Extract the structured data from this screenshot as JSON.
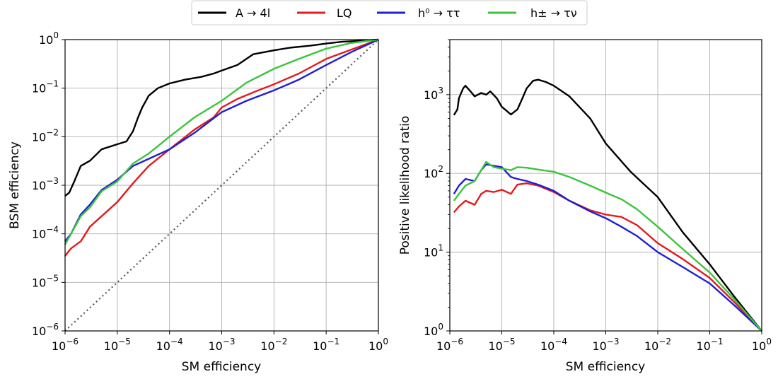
{
  "legend": [
    {
      "label": "A → 4l",
      "color": "#000000"
    },
    {
      "label": "LQ",
      "color": "#e41a1c"
    },
    {
      "label": "h⁰ → ττ",
      "color": "#1f1fd6"
    },
    {
      "label": "h± → τν",
      "color": "#3cc43c"
    }
  ],
  "chart_data": [
    {
      "type": "line",
      "xlabel": "SM efficiency",
      "ylabel": "BSM efficiency",
      "xscale": "log",
      "yscale": "log",
      "xlim": [
        1e-06,
        1
      ],
      "ylim": [
        1e-06,
        1
      ],
      "grid": true,
      "xticks": [
        {
          "base": "10",
          "exp": "−6"
        },
        {
          "base": "10",
          "exp": "−5"
        },
        {
          "base": "10",
          "exp": "−4"
        },
        {
          "base": "10",
          "exp": "−3"
        },
        {
          "base": "10",
          "exp": "−2"
        },
        {
          "base": "10",
          "exp": "−1"
        },
        {
          "base": "10",
          "exp": "0"
        }
      ],
      "yticks": [
        {
          "base": "10",
          "exp": "−6"
        },
        {
          "base": "10",
          "exp": "−5"
        },
        {
          "base": "10",
          "exp": "−4"
        },
        {
          "base": "10",
          "exp": "−3"
        },
        {
          "base": "10",
          "exp": "−2"
        },
        {
          "base": "10",
          "exp": "−1"
        },
        {
          "base": "10",
          "exp": "0"
        }
      ],
      "series": [
        {
          "name": "A → 4l",
          "color": "#000000",
          "x": [
            1e-06,
            1.2e-06,
            1.5e-06,
            2e-06,
            3e-06,
            5e-06,
            1e-05,
            1.5e-05,
            2e-05,
            2.5e-05,
            3e-05,
            4e-05,
            6e-05,
            0.0001,
            0.0002,
            0.0004,
            0.0007,
            0.001,
            0.002,
            0.004,
            0.007,
            0.01,
            0.02,
            0.05,
            0.1,
            0.2,
            0.5,
            1
          ],
          "y": [
            0.0006,
            0.0007,
            0.0012,
            0.0025,
            0.0032,
            0.0055,
            0.007,
            0.008,
            0.013,
            0.025,
            0.04,
            0.07,
            0.1,
            0.125,
            0.15,
            0.17,
            0.2,
            0.23,
            0.3,
            0.5,
            0.56,
            0.6,
            0.68,
            0.75,
            0.83,
            0.9,
            0.95,
            1
          ]
        },
        {
          "name": "LQ",
          "color": "#e41a1c",
          "x": [
            1e-06,
            1.3e-06,
            2e-06,
            3e-06,
            5e-06,
            1e-05,
            2e-05,
            4e-05,
            0.0001,
            0.0003,
            0.0007,
            0.001,
            0.002,
            0.005,
            0.01,
            0.03,
            0.1,
            0.3,
            1
          ],
          "y": [
            3.5e-05,
            5e-05,
            7e-05,
            0.00014,
            0.00023,
            0.00045,
            0.0011,
            0.0025,
            0.0055,
            0.014,
            0.025,
            0.04,
            0.06,
            0.09,
            0.12,
            0.2,
            0.4,
            0.62,
            1
          ]
        },
        {
          "name": "h⁰ → ττ",
          "color": "#1f1fd6",
          "x": [
            1e-06,
            1.3e-06,
            2e-06,
            3e-06,
            5e-06,
            1e-05,
            2e-05,
            4e-05,
            0.0001,
            0.0003,
            0.001,
            0.003,
            0.01,
            0.03,
            0.1,
            0.3,
            1
          ],
          "y": [
            7e-05,
            0.0001,
            0.00025,
            0.0004,
            0.0008,
            0.0013,
            0.0025,
            0.0035,
            0.0055,
            0.012,
            0.032,
            0.055,
            0.09,
            0.15,
            0.3,
            0.55,
            1
          ]
        },
        {
          "name": "h± → τν",
          "color": "#3cc43c",
          "x": [
            1e-06,
            1.3e-06,
            2e-06,
            3e-06,
            5e-06,
            1e-05,
            2e-05,
            4e-05,
            0.0001,
            0.0003,
            0.001,
            0.003,
            0.01,
            0.03,
            0.1,
            0.3,
            1
          ],
          "y": [
            6e-05,
            0.0001,
            0.00023,
            0.00035,
            0.00075,
            0.0012,
            0.0028,
            0.0045,
            0.01,
            0.025,
            0.055,
            0.13,
            0.25,
            0.4,
            0.65,
            0.85,
            1
          ]
        },
        {
          "name": "",
          "color": "#555555",
          "dashed": true,
          "x": [
            1e-06,
            1
          ],
          "y": [
            1e-06,
            1
          ]
        }
      ]
    },
    {
      "type": "line",
      "xlabel": "SM efficiency",
      "ylabel": "Positive likelihood ratio",
      "xscale": "log",
      "yscale": "log",
      "xlim": [
        1e-06,
        1
      ],
      "ylim": [
        1,
        5000
      ],
      "grid": true,
      "xticks": [
        {
          "base": "10",
          "exp": "−6"
        },
        {
          "base": "10",
          "exp": "−5"
        },
        {
          "base": "10",
          "exp": "−4"
        },
        {
          "base": "10",
          "exp": "−3"
        },
        {
          "base": "10",
          "exp": "−2"
        },
        {
          "base": "10",
          "exp": "−1"
        },
        {
          "base": "10",
          "exp": "0"
        }
      ],
      "yticks": [
        {
          "base": "10",
          "exp": "0"
        },
        {
          "base": "10",
          "exp": "1"
        },
        {
          "base": "10",
          "exp": "2"
        },
        {
          "base": "10",
          "exp": "3"
        }
      ],
      "series": [
        {
          "name": "A → 4l",
          "color": "#000000",
          "x": [
            1.2e-06,
            1.4e-06,
            1.5e-06,
            1.8e-06,
            2e-06,
            2.5e-06,
            3e-06,
            4e-06,
            5e-06,
            6e-06,
            8e-06,
            1e-05,
            1.5e-05,
            2e-05,
            2.5e-05,
            3e-05,
            4e-05,
            5e-05,
            7e-05,
            0.0001,
            0.0002,
            0.0005,
            0.001,
            0.003,
            0.01,
            0.03,
            0.1,
            0.3,
            1
          ],
          "y": [
            550,
            650,
            900,
            1200,
            1300,
            1100,
            950,
            1050,
            1000,
            1100,
            900,
            700,
            560,
            650,
            900,
            1200,
            1500,
            1550,
            1450,
            1300,
            950,
            500,
            240,
            105,
            50,
            18,
            7,
            2.7,
            1
          ]
        },
        {
          "name": "LQ",
          "color": "#e41a1c",
          "x": [
            1.2e-06,
            1.5e-06,
            2e-06,
            3e-06,
            4e-06,
            5e-06,
            7e-06,
            1e-05,
            1.5e-05,
            2e-05,
            3e-05,
            5e-05,
            0.0001,
            0.0002,
            0.0005,
            0.001,
            0.002,
            0.004,
            0.01,
            0.03,
            0.1,
            0.3,
            1
          ],
          "y": [
            32,
            38,
            45,
            40,
            55,
            60,
            58,
            62,
            55,
            72,
            75,
            70,
            58,
            45,
            34,
            30,
            28,
            22,
            13,
            8.2,
            4.7,
            2.3,
            1
          ]
        },
        {
          "name": "h⁰ → ττ",
          "color": "#1f1fd6",
          "x": [
            1.2e-06,
            1.5e-06,
            2e-06,
            3e-06,
            4e-06,
            5e-06,
            7e-06,
            1e-05,
            1.5e-05,
            2e-05,
            3e-05,
            5e-05,
            0.0001,
            0.0002,
            0.0005,
            0.001,
            0.002,
            0.004,
            0.01,
            0.03,
            0.1,
            0.3,
            1
          ],
          "y": [
            55,
            70,
            85,
            80,
            110,
            130,
            125,
            120,
            90,
            85,
            80,
            72,
            60,
            45,
            33,
            27,
            21,
            16,
            10,
            6.5,
            4,
            2.1,
            1
          ]
        },
        {
          "name": "h± → τν",
          "color": "#3cc43c",
          "x": [
            1.2e-06,
            1.5e-06,
            2e-06,
            3e-06,
            4e-06,
            5e-06,
            7e-06,
            1e-05,
            1.5e-05,
            2e-05,
            3e-05,
            5e-05,
            0.0001,
            0.0002,
            0.0005,
            0.001,
            0.002,
            0.004,
            0.01,
            0.03,
            0.1,
            0.3,
            1
          ],
          "y": [
            45,
            55,
            70,
            80,
            110,
            140,
            120,
            115,
            110,
            120,
            118,
            112,
            105,
            90,
            70,
            57,
            47,
            35,
            21,
            11,
            5.5,
            2.5,
            1
          ]
        }
      ]
    }
  ]
}
